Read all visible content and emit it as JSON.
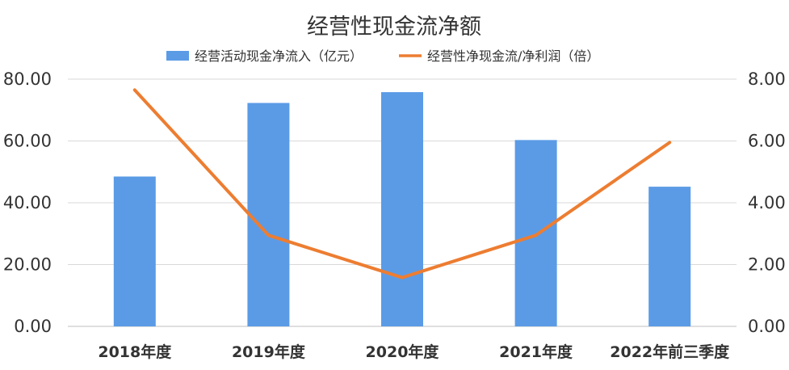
{
  "chart_data": {
    "type": "bar",
    "title": "经营性现金流净额",
    "categories": [
      "2018年度",
      "2019年度",
      "2020年度",
      "2021年度",
      "2022年前三季度"
    ],
    "series": [
      {
        "name": "经营活动现金净流入（亿元）",
        "type": "bar",
        "axis": "left",
        "color": "#5B9BE6",
        "values": [
          48.5,
          72.3,
          75.8,
          60.3,
          45.2
        ]
      },
      {
        "name": "经营性净现金流/净利润（倍）",
        "type": "line",
        "axis": "right",
        "color": "#ED7D31",
        "values": [
          7.65,
          2.95,
          1.58,
          2.95,
          5.95
        ]
      }
    ],
    "ylim_left": [
      0,
      80
    ],
    "yticks_left": [
      "0.00",
      "20.00",
      "40.00",
      "60.00",
      "80.00"
    ],
    "ylim_right": [
      0,
      8
    ],
    "yticks_right": [
      "0.00",
      "2.00",
      "4.00",
      "6.00",
      "8.00"
    ],
    "grid": true,
    "legend_position": "top"
  }
}
